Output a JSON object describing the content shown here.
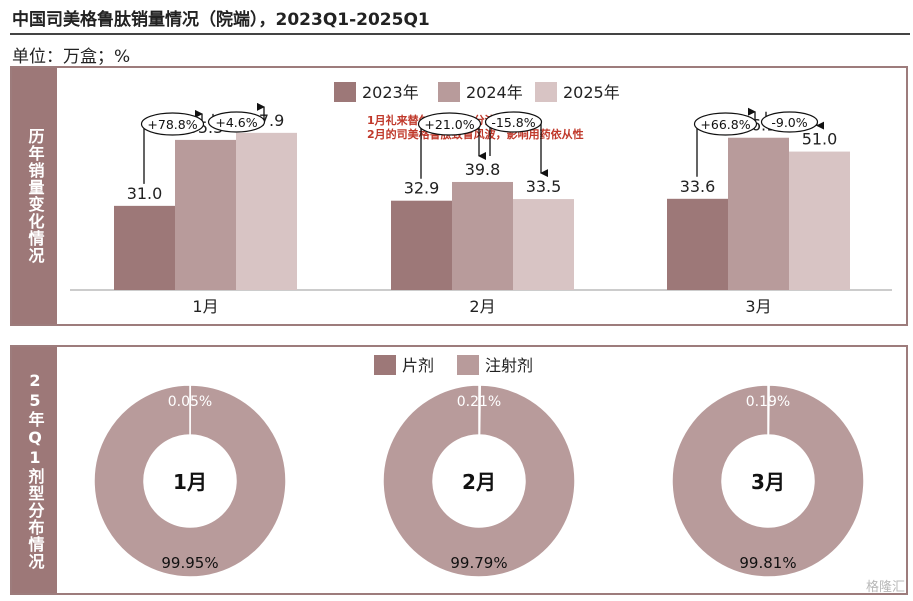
{
  "title": "中国司美格鲁肽销量情况（院端），2023Q1-2025Q1",
  "unit": "单位：万盒；%",
  "watermark": "格隆汇",
  "colors": {
    "y2023": "#9d7878",
    "y2024": "#b89b9b",
    "y2025": "#d8c4c4",
    "side": "#9d7878",
    "annotation": "#c0392b",
    "donut_main": "#b89b9b",
    "donut_small": "#9d7878"
  },
  "top_panel": {
    "side_label": "历年销量变化情况"
  },
  "bottom_panel": {
    "side_label": "25年Q1剂型分布情况"
  },
  "chart_data": [
    {
      "type": "bar",
      "categories": [
        "1月",
        "2月",
        "3月"
      ],
      "series": [
        {
          "name": "2023年",
          "values": [
            31.0,
            32.9,
            33.6
          ],
          "labels": [
            "31.0",
            "32.9",
            "33.6"
          ]
        },
        {
          "name": "2024年",
          "values": [
            55.3,
            39.8,
            56.1
          ],
          "labels": [
            "55.3",
            "39.8",
            "56.1"
          ]
        },
        {
          "name": "2025年",
          "values": [
            57.9,
            33.5,
            51.0
          ],
          "labels": [
            "57.9",
            "33.5",
            "51.0"
          ]
        }
      ],
      "growth_labels": [
        {
          "category": "1月",
          "yoy_2024": "+78.8%",
          "yoy_2025": "+4.6%"
        },
        {
          "category": "2月",
          "yoy_2024": "+21.0%",
          "yoy_2025": "-15.8%"
        },
        {
          "category": "3月",
          "yoy_2024": "+66.8%",
          "yoy_2025": "-9.0%"
        }
      ],
      "annotation": [
        "1月礼来替尔泊肽上市分流客户+",
        "2月的司美格鲁肽致盲风波，影响用药依从性"
      ],
      "legend_position": "top",
      "ylim": [
        0,
        70
      ]
    },
    {
      "type": "pie",
      "legend": [
        "片剂",
        "注射剂"
      ],
      "legend_position": "top",
      "donuts": [
        {
          "center_label": "1月",
          "slices": [
            {
              "name": "片剂",
              "value": 0.05,
              "label": "0.05%"
            },
            {
              "name": "注射剂",
              "value": 99.95,
              "label": "99.95%"
            }
          ]
        },
        {
          "center_label": "2月",
          "slices": [
            {
              "name": "片剂",
              "value": 0.21,
              "label": "0.21%"
            },
            {
              "name": "注射剂",
              "value": 99.79,
              "label": "99.79%"
            }
          ]
        },
        {
          "center_label": "3月",
          "slices": [
            {
              "name": "片剂",
              "value": 0.19,
              "label": "0.19%"
            },
            {
              "name": "注射剂",
              "value": 99.81,
              "label": "99.81%"
            }
          ]
        }
      ]
    }
  ]
}
